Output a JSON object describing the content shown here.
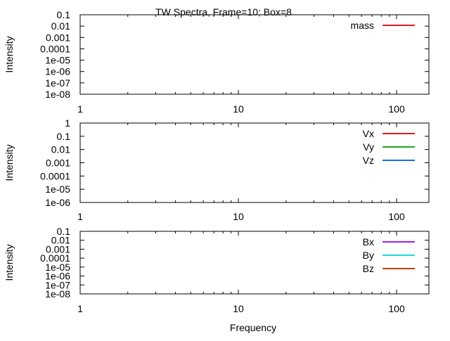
{
  "title": "TW Spectra, Frame=10; Box=8",
  "xlabel": "Frequency",
  "chart_data": [
    {
      "type": "line",
      "xscale": "log",
      "yscale": "log",
      "xlim": [
        1,
        160
      ],
      "x_ticks": [
        "1",
        "10",
        "100"
      ],
      "y_ticks": [
        "0.1",
        "0.01",
        "0.001",
        "0.0001",
        "1e-05",
        "1e-06",
        "1e-07",
        "1e-08"
      ],
      "ylim": [
        1e-08,
        0.1
      ],
      "ylabel": "Intensity",
      "legend_position": "top-right",
      "series": [
        {
          "name": "mass",
          "color": "#e41a1c",
          "x": [],
          "y": []
        }
      ]
    },
    {
      "type": "line",
      "xscale": "log",
      "yscale": "log",
      "xlim": [
        1,
        160
      ],
      "x_ticks": [
        "1",
        "10",
        "100"
      ],
      "y_ticks": [
        "1",
        "0.1",
        "0.01",
        "0.001",
        "0.0001",
        "1e-05",
        "1e-06"
      ],
      "ylim": [
        1e-06,
        1
      ],
      "ylabel": "Intensity",
      "legend_position": "top-right",
      "series": [
        {
          "name": "Vx",
          "color": "#e41a1c",
          "x": [],
          "y": []
        },
        {
          "name": "Vy",
          "color": "#22aa22",
          "x": [],
          "y": []
        },
        {
          "name": "Vz",
          "color": "#1a6fdb",
          "x": [],
          "y": []
        }
      ]
    },
    {
      "type": "line",
      "xscale": "log",
      "yscale": "log",
      "xlim": [
        1,
        160
      ],
      "x_ticks": [
        "1",
        "10",
        "100"
      ],
      "y_ticks": [
        "0.1",
        "0.01",
        "0.001",
        "0.0001",
        "1e-05",
        "1e-06",
        "1e-07",
        "1e-08"
      ],
      "ylim": [
        1e-08,
        0.1
      ],
      "ylabel": "Intensity",
      "legend_position": "top-right",
      "series": [
        {
          "name": "Bx",
          "color": "#a020f0",
          "x": [],
          "y": []
        },
        {
          "name": "By",
          "color": "#22d8e0",
          "x": [],
          "y": []
        },
        {
          "name": "Bz",
          "color": "#c04010",
          "x": [],
          "y": []
        }
      ]
    }
  ]
}
